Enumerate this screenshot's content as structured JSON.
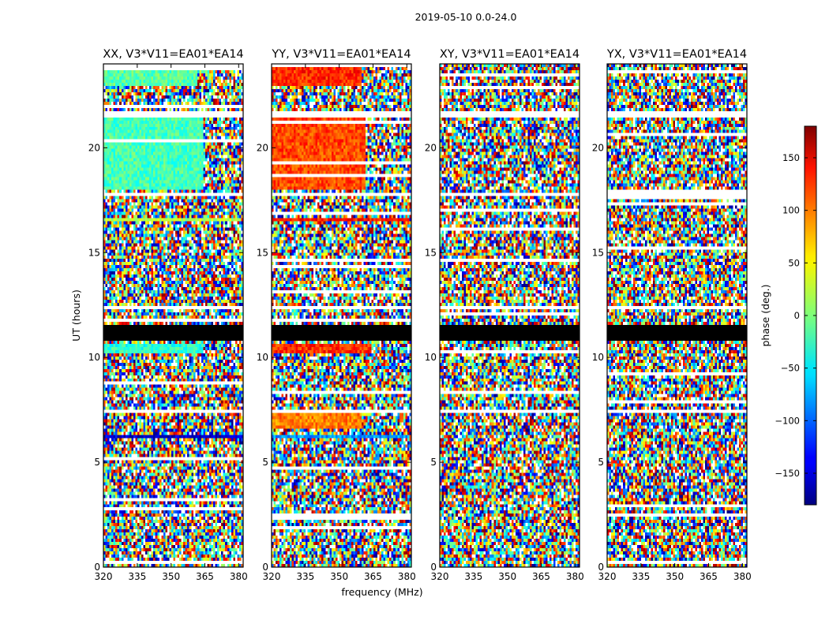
{
  "chart_data": {
    "type": "heatmap",
    "title": "2019-05-10 0.0-24.0",
    "xlabel": "frequency (MHz)",
    "ylabel": "UT (hours)",
    "xlim": [
      320,
      382
    ],
    "ylim": [
      0,
      24
    ],
    "xticks": [
      320,
      335,
      350,
      365,
      380
    ],
    "yticks": [
      0,
      5,
      10,
      15,
      20
    ],
    "colorbar": {
      "label": "phase (deg.)",
      "range": [
        -180,
        180
      ],
      "ticks": [
        -150,
        -100,
        -50,
        0,
        50,
        100,
        150
      ],
      "colormap": "jet"
    },
    "flagged_rows_ut": [
      [
        10.75,
        11.55
      ]
    ],
    "blank_rows_ut": [
      [
        21.45,
        21.8
      ],
      [
        7.35,
        7.55
      ],
      [
        6.55,
        6.6
      ],
      [
        17.75,
        17.85
      ],
      [
        12.35,
        12.45
      ]
    ],
    "panels": [
      {
        "name": "XX",
        "title": "XX, V3*V11=EA01*EA14",
        "coherent_bands": [
          {
            "ut": [
              18.0,
              21.4
            ],
            "freq_max": 364,
            "phase": -20
          },
          {
            "ut": [
              22.9,
              24.0
            ],
            "freq_max": 362,
            "phase": -15
          },
          {
            "ut": [
              10.2,
              10.6
            ],
            "freq_max": 364,
            "phase": -30
          },
          {
            "ut": [
              6.15,
              6.3
            ],
            "freq_max": 381,
            "phase": -150
          },
          {
            "ut": [
              16.5,
              16.7
            ],
            "freq_max": 381,
            "phase": 20
          }
        ]
      },
      {
        "name": "YY",
        "title": "YY, V3*V11=EA01*EA14",
        "coherent_bands": [
          {
            "ut": [
              18.0,
              21.4
            ],
            "freq_max": 362,
            "phase": 110
          },
          {
            "ut": [
              22.9,
              24.0
            ],
            "freq_max": 360,
            "phase": 120
          },
          {
            "ut": [
              10.2,
              10.6
            ],
            "freq_max": 364,
            "phase": 120
          },
          {
            "ut": [
              6.15,
              6.3
            ],
            "freq_max": 381,
            "phase": -80
          },
          {
            "ut": [
              16.5,
              16.7
            ],
            "freq_max": 381,
            "phase": 130
          },
          {
            "ut": [
              6.6,
              7.3
            ],
            "freq_max": 360,
            "phase": 90
          }
        ]
      },
      {
        "name": "XY",
        "title": "XY, V3*V11=EA01*EA14",
        "coherent_bands": []
      },
      {
        "name": "YX",
        "title": "YX, V3*V11=EA01*EA14",
        "coherent_bands": []
      }
    ]
  }
}
